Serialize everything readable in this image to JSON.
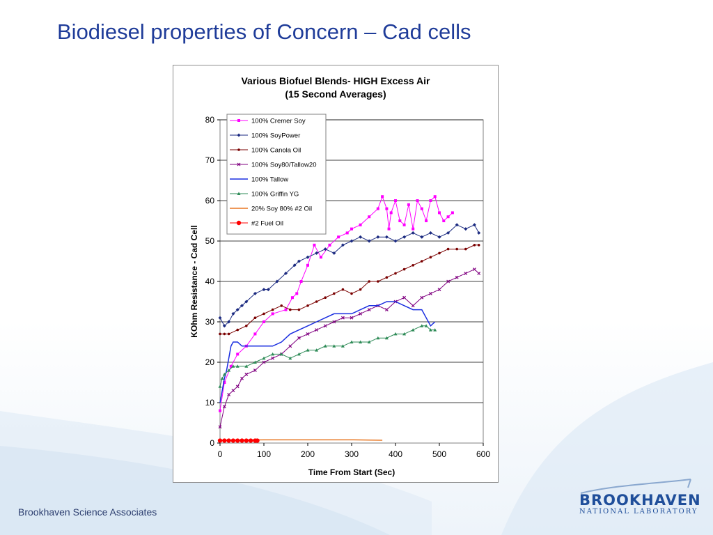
{
  "slide": {
    "title": "Biodiesel properties of Concern – Cad cells",
    "footer": "Brookhaven Science Associates",
    "logo_main": "BROOKHAVEN",
    "logo_sub": "NATIONAL LABORATORY"
  },
  "chart_data": {
    "type": "line",
    "title": "Various Biofuel Blends- HIGH Excess Air",
    "subtitle": "(15 Second Averages)",
    "xlabel": "Time From Start (Sec)",
    "ylabel": "KOhm Resistance - Cad Cell",
    "xlim": [
      0,
      600
    ],
    "ylim": [
      0,
      80
    ],
    "xticks": [
      0,
      100,
      200,
      300,
      400,
      500,
      600
    ],
    "yticks": [
      0,
      10,
      20,
      30,
      40,
      50,
      60,
      70,
      80
    ],
    "grid": "horizontal",
    "legend_position": "top-left",
    "series": [
      {
        "name": "100% Cremer Soy",
        "color": "#ff00ff",
        "marker": "square",
        "x": [
          0,
          10,
          25,
          40,
          60,
          80,
          100,
          120,
          150,
          165,
          175,
          185,
          200,
          215,
          230,
          250,
          270,
          290,
          300,
          320,
          340,
          360,
          370,
          380,
          385,
          390,
          400,
          410,
          420,
          430,
          440,
          450,
          460,
          470,
          480,
          490,
          500,
          510,
          520,
          530
        ],
        "y": [
          8,
          15,
          19,
          22,
          24,
          27,
          30,
          32,
          33,
          36,
          37,
          40,
          44,
          49,
          46,
          49,
          51,
          52,
          53,
          54,
          56,
          58,
          61,
          58,
          53,
          57,
          60,
          55,
          54,
          59,
          53,
          60,
          58,
          55,
          60,
          61,
          57,
          55,
          56,
          57
        ]
      },
      {
        "name": "100% SoyPower",
        "color": "#1b2a80",
        "marker": "diamond",
        "x": [
          0,
          10,
          20,
          30,
          40,
          50,
          60,
          80,
          100,
          110,
          130,
          150,
          170,
          180,
          200,
          220,
          240,
          260,
          280,
          300,
          320,
          340,
          360,
          380,
          400,
          420,
          440,
          460,
          480,
          500,
          520,
          540,
          560,
          580,
          590
        ],
        "y": [
          31,
          29,
          30,
          32,
          33,
          34,
          35,
          37,
          38,
          38,
          40,
          42,
          44,
          45,
          46,
          47,
          48,
          47,
          49,
          50,
          51,
          50,
          51,
          51,
          50,
          51,
          52,
          51,
          52,
          51,
          52,
          54,
          53,
          54,
          52
        ]
      },
      {
        "name": "100% Canola Oil",
        "color": "#7a0000",
        "marker": "circle",
        "x": [
          0,
          10,
          20,
          40,
          60,
          80,
          100,
          120,
          140,
          160,
          180,
          200,
          220,
          240,
          260,
          280,
          300,
          320,
          340,
          360,
          380,
          400,
          420,
          440,
          460,
          480,
          500,
          520,
          540,
          560,
          580,
          590
        ],
        "y": [
          27,
          27,
          27,
          28,
          29,
          31,
          32,
          33,
          34,
          33,
          33,
          34,
          35,
          36,
          37,
          38,
          37,
          38,
          40,
          40,
          41,
          42,
          43,
          44,
          45,
          46,
          47,
          48,
          48,
          48,
          49,
          49
        ]
      },
      {
        "name": "100% Soy80/Tallow20",
        "color": "#800080",
        "marker": "x",
        "x": [
          0,
          10,
          20,
          30,
          40,
          50,
          60,
          80,
          100,
          120,
          140,
          160,
          180,
          200,
          220,
          240,
          260,
          280,
          300,
          320,
          340,
          360,
          380,
          400,
          420,
          440,
          460,
          480,
          500,
          520,
          540,
          560,
          580,
          590
        ],
        "y": [
          4,
          9,
          12,
          13,
          14,
          16,
          17,
          18,
          20,
          21,
          22,
          24,
          26,
          27,
          28,
          29,
          30,
          31,
          31,
          32,
          33,
          34,
          33,
          35,
          36,
          34,
          36,
          37,
          38,
          40,
          41,
          42,
          43,
          42
        ]
      },
      {
        "name": "100% Tallow",
        "color": "#1a2ee0",
        "marker": "line",
        "x": [
          0,
          5,
          10,
          15,
          20,
          25,
          30,
          40,
          50,
          60,
          80,
          100,
          120,
          140,
          160,
          180,
          200,
          220,
          240,
          260,
          280,
          300,
          320,
          340,
          360,
          380,
          400,
          420,
          440,
          460,
          470,
          480,
          490
        ],
        "y": [
          10,
          13,
          16,
          18,
          21,
          24,
          25,
          25,
          24,
          24,
          24,
          24,
          24,
          25,
          27,
          28,
          29,
          30,
          31,
          32,
          32,
          32,
          33,
          34,
          34,
          35,
          35,
          34,
          33,
          33,
          31,
          29,
          30
        ]
      },
      {
        "name": "100% Griffin YG",
        "color": "#2e8b57",
        "marker": "triangle",
        "x": [
          0,
          5,
          10,
          20,
          30,
          40,
          60,
          80,
          100,
          120,
          140,
          160,
          180,
          200,
          220,
          240,
          260,
          280,
          300,
          320,
          340,
          360,
          380,
          400,
          420,
          440,
          460,
          470,
          480,
          490
        ],
        "y": [
          14,
          16,
          17,
          18,
          19,
          19,
          19,
          20,
          21,
          22,
          22,
          21,
          22,
          23,
          23,
          24,
          24,
          24,
          25,
          25,
          25,
          26,
          26,
          27,
          27,
          28,
          29,
          29,
          28,
          28
        ]
      },
      {
        "name": "20% Soy 80% #2 Oil",
        "color": "#e87722",
        "marker": "line",
        "x": [
          0,
          100,
          200,
          300,
          370
        ],
        "y": [
          0.7,
          0.8,
          0.8,
          0.8,
          0.7
        ]
      },
      {
        "name": "#2 Fuel Oil",
        "color": "#ff0000",
        "marker": "circle-large",
        "x": [
          0,
          10,
          20,
          30,
          40,
          50,
          60,
          70,
          80,
          85
        ],
        "y": [
          0.6,
          0.6,
          0.6,
          0.6,
          0.6,
          0.6,
          0.6,
          0.6,
          0.6,
          0.6
        ]
      }
    ]
  }
}
